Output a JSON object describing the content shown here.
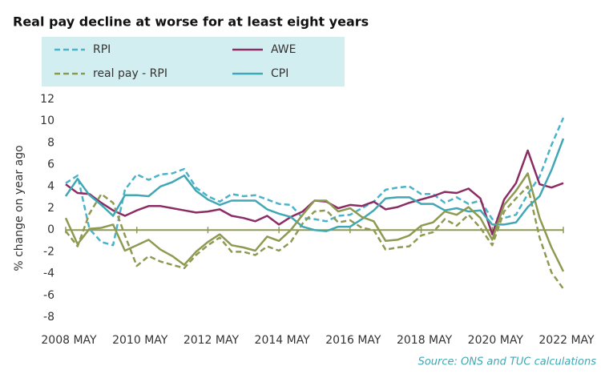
{
  "chart_data": {
    "type": "line",
    "title": "Real pay decline at worse for at least eight years",
    "y_label": "% change on year ago",
    "source": "Source: ONS and TUC calculations",
    "x": [
      "2008-05",
      "2008-09",
      "2009-01",
      "2009-05",
      "2009-09",
      "2010-01",
      "2010-05",
      "2010-09",
      "2011-01",
      "2011-05",
      "2011-09",
      "2012-01",
      "2012-05",
      "2012-09",
      "2013-01",
      "2013-05",
      "2013-09",
      "2014-01",
      "2014-05",
      "2014-09",
      "2015-01",
      "2015-05",
      "2015-09",
      "2016-01",
      "2016-05",
      "2016-09",
      "2017-01",
      "2017-05",
      "2017-09",
      "2018-01",
      "2018-05",
      "2018-09",
      "2019-01",
      "2019-05",
      "2019-09",
      "2020-01",
      "2020-05",
      "2020-09",
      "2021-01",
      "2021-05",
      "2021-09",
      "2022-01",
      "2022-05"
    ],
    "xlim": [
      "2008-05",
      "2022-05"
    ],
    "xticks": [
      {
        "value": "2008-05",
        "label": "2008 MAY"
      },
      {
        "value": "2010-05",
        "label": "2010 MAY"
      },
      {
        "value": "2012-05",
        "label": "2012 MAY"
      },
      {
        "value": "2014-05",
        "label": "2014 MAY"
      },
      {
        "value": "2016-05",
        "label": "2016 MAY"
      },
      {
        "value": "2018-05",
        "label": "2018 MAY"
      },
      {
        "value": "2020-05",
        "label": "2020 MAY"
      },
      {
        "value": "2022-05",
        "label": "2022 MAY"
      }
    ],
    "ylim": [
      -8,
      12
    ],
    "yticks": [
      -8,
      -6,
      -4,
      -2,
      0,
      2,
      4,
      6,
      8,
      10,
      12
    ],
    "series": [
      {
        "name": "RPI",
        "color": "#4bb3c8",
        "dashed": true,
        "values": [
          4.3,
          5.0,
          0.1,
          -1.1,
          -1.4,
          3.7,
          5.1,
          4.6,
          5.1,
          5.2,
          5.6,
          3.9,
          3.1,
          2.6,
          3.3,
          3.1,
          3.2,
          2.8,
          2.4,
          2.3,
          1.1,
          1.0,
          0.8,
          1.3,
          1.4,
          2.0,
          2.6,
          3.7,
          3.9,
          4.0,
          3.3,
          3.3,
          2.5,
          3.0,
          2.4,
          2.7,
          1.0,
          1.1,
          1.4,
          3.3,
          4.9,
          7.8,
          10.3
        ]
      },
      {
        "name": "AWE",
        "color": "#8b2c64",
        "dashed": false,
        "values": [
          4.2,
          3.4,
          3.3,
          2.5,
          1.8,
          1.3,
          1.8,
          2.2,
          2.2,
          2.0,
          1.8,
          1.6,
          1.7,
          1.9,
          1.3,
          1.1,
          0.8,
          1.3,
          0.5,
          1.2,
          1.7,
          2.7,
          2.6,
          2.0,
          2.3,
          2.2,
          2.6,
          1.9,
          2.1,
          2.5,
          2.8,
          3.1,
          3.5,
          3.4,
          3.8,
          2.9,
          -0.4,
          2.8,
          4.3,
          7.3,
          4.2,
          3.9,
          4.3
        ]
      },
      {
        "name": "real pay - RPI",
        "color": "#8e9a52",
        "dashed": true,
        "values": [
          -0.1,
          -1.5,
          1.5,
          3.3,
          2.5,
          -0.5,
          -3.3,
          -2.4,
          -2.9,
          -3.2,
          -3.5,
          -2.3,
          -1.4,
          -0.7,
          -2.0,
          -2.0,
          -2.3,
          -1.5,
          -1.9,
          -1.1,
          0.6,
          1.7,
          1.8,
          0.7,
          0.9,
          0.2,
          0.0,
          -1.8,
          -1.6,
          -1.5,
          -0.5,
          -0.2,
          1.0,
          0.4,
          1.4,
          0.2,
          -1.4,
          1.7,
          2.9,
          4.0,
          -0.7,
          -3.9,
          -5.4
        ]
      },
      {
        "name": "CPI",
        "color": "#3fa8b4",
        "dashed": false,
        "values": [
          3.1,
          4.7,
          3.2,
          2.3,
          1.3,
          3.2,
          3.2,
          3.1,
          4.0,
          4.4,
          5.0,
          3.6,
          2.8,
          2.3,
          2.7,
          2.7,
          2.7,
          1.9,
          1.5,
          1.2,
          0.3,
          0.0,
          -0.1,
          0.3,
          0.3,
          1.0,
          1.8,
          2.9,
          3.0,
          3.0,
          2.4,
          2.4,
          1.8,
          2.0,
          1.7,
          1.8,
          0.5,
          0.5,
          0.7,
          2.1,
          3.1,
          5.5,
          8.4
        ]
      },
      {
        "color": "#8e9a52",
        "dashed": false,
        "values": [
          1.1,
          -1.3,
          0.1,
          0.2,
          0.5,
          -1.9,
          -1.4,
          -0.9,
          -1.8,
          -2.4,
          -3.2,
          -2.0,
          -1.1,
          -0.4,
          -1.4,
          -1.6,
          -1.9,
          -0.6,
          -1.0,
          0.0,
          1.4,
          2.7,
          2.7,
          1.7,
          2.0,
          1.2,
          0.8,
          -1.0,
          -0.9,
          -0.5,
          0.4,
          0.7,
          1.7,
          1.4,
          2.1,
          1.1,
          -0.9,
          2.3,
          3.6,
          5.2,
          1.1,
          -1.6,
          -3.8
        ]
      }
    ],
    "legend_background": "#d3eef0",
    "zero_line_color": "#8e9a52"
  }
}
